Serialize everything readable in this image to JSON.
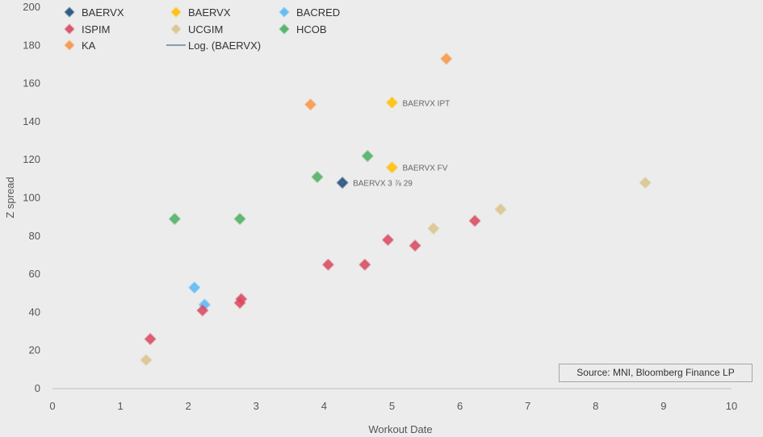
{
  "source": "Source: MNI, Bloomberg Finance LP",
  "chart_data": {
    "type": "scatter",
    "xlabel": "Workout Date",
    "ylabel": "Z spread",
    "xlim": [
      0,
      10
    ],
    "ylim": [
      0,
      200
    ],
    "xticks": [
      "0",
      "1",
      "2",
      "3",
      "4",
      "5",
      "6",
      "7",
      "8",
      "9",
      "10"
    ],
    "yticks": [
      "0",
      "20",
      "40",
      "60",
      "80",
      "100",
      "120",
      "140",
      "160",
      "180",
      "200"
    ],
    "grid": false,
    "legend_position": "top-left",
    "series": [
      {
        "name": "BAERVX",
        "color": "#1f4e79",
        "points": [
          [
            4.27,
            108
          ]
        ],
        "labels": [
          "BAERVX 3 ⅞ 29"
        ]
      },
      {
        "name": "BAERVX",
        "color": "#ffc000",
        "points": [
          [
            5.0,
            150
          ],
          [
            5.0,
            116
          ]
        ],
        "labels": [
          "BAERVX IPT",
          "BAERVX FV"
        ]
      },
      {
        "name": "BACRED",
        "color": "#5bb8f5",
        "points": [
          [
            2.09,
            53
          ],
          [
            2.24,
            44
          ]
        ]
      },
      {
        "name": "ISPIM",
        "color": "#d9485f",
        "points": [
          [
            1.44,
            26
          ],
          [
            2.21,
            41
          ],
          [
            2.76,
            45
          ],
          [
            2.78,
            47
          ],
          [
            4.06,
            65
          ],
          [
            4.6,
            65
          ],
          [
            4.94,
            78
          ],
          [
            5.34,
            75
          ],
          [
            6.22,
            88
          ]
        ]
      },
      {
        "name": "UCGIM",
        "color": "#d9c48c",
        "points": [
          [
            1.38,
            15
          ],
          [
            5.61,
            84
          ],
          [
            6.6,
            94
          ],
          [
            8.73,
            108
          ]
        ]
      },
      {
        "name": "HCOB",
        "color": "#4caf62",
        "points": [
          [
            1.8,
            89
          ],
          [
            2.76,
            89
          ],
          [
            3.9,
            111
          ],
          [
            4.64,
            122
          ]
        ]
      },
      {
        "name": "KA",
        "color": "#f79646",
        "points": [
          [
            3.8,
            149
          ],
          [
            5.8,
            173
          ]
        ]
      }
    ],
    "trendline": {
      "name": "Log. (BAERVX)",
      "color": "#1f4e79"
    }
  }
}
